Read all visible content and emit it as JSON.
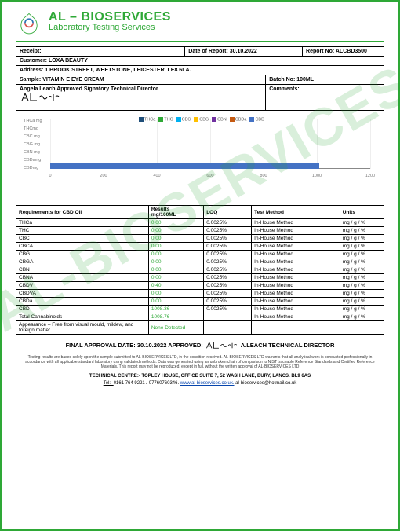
{
  "brand": {
    "name": "AL – BIOSERVICES",
    "sub": "Laboratory Testing Services"
  },
  "info": {
    "receipt_label": "Receipt:",
    "date_label": "Date of Report: ",
    "date": "30.10.2022",
    "report_label": "Report No: ",
    "report_no": "ALCBD3500",
    "customer_label": "Customer: ",
    "customer": "LOXA BEAUTY",
    "address_label": "Address:   ",
    "address": "1 BROOK STREET, WHETSTONE, LEICESTER. LE8 6LA.",
    "sample_label": "Sample: ",
    "sample": "VITAMIN E EYE CREAM",
    "batch_label": "Batch No: ",
    "batch": "100ML",
    "signatory_title": "Angela Leach Approved Signatory Technical Director",
    "comments_label": "Comments:"
  },
  "chart": {
    "type": "stacked-bar",
    "y_categories": [
      "THCa mg",
      "THCmg",
      "CBC mg",
      "CBG mg",
      "CBN mg",
      "CBDamg",
      "CBDmg"
    ],
    "xlim": [
      0,
      1200
    ],
    "xtick_step": 200,
    "xticks": [
      0,
      200,
      400,
      600,
      800,
      1000,
      1200
    ],
    "series_labels": [
      "THCa",
      "THC",
      "CBC",
      "CBG",
      "CBN",
      "CBDa",
      "CBD"
    ],
    "series_colors": [
      "#1f4e79",
      "#2ea836",
      "#00b0f0",
      "#ffc000",
      "#7030a0",
      "#c55a11",
      "#4472c4"
    ],
    "cbd_value": 1008.36,
    "grid_color": "#eeeeee",
    "axis_color": "#888888",
    "background": "#ffffff"
  },
  "table": {
    "headers": [
      "Requirements for CBD Oil",
      "Results mg/100ML",
      "LOQ",
      "Test Method",
      "Units"
    ],
    "rows": [
      [
        "THCa",
        "0.00",
        "0.0025%",
        "In-House Method",
        "mg / g / %"
      ],
      [
        "THC",
        "0.00",
        "0.0025%",
        "In-House Method",
        "mg / g / %"
      ],
      [
        "CBC",
        "0.00",
        "0.0025%",
        "In-House Method",
        "mg / g / %"
      ],
      [
        "CBCA",
        "0.00",
        "0.0025%",
        "In-House Method",
        "mg / g / %"
      ],
      [
        "CBG",
        "0.00",
        "0.0025%",
        "In-House Method",
        "mg / g / %"
      ],
      [
        "CBGA",
        "0.00",
        "0.0025%",
        "In-House Method",
        "mg / g / %"
      ],
      [
        "CBN",
        "0.00",
        "0.0025%",
        "In-House Method",
        "mg / g / %"
      ],
      [
        "CBNA",
        "0.00",
        "0.0025%",
        "In-House Method",
        "mg / g / %"
      ],
      [
        "CBDV",
        "0.40",
        "0.0025%",
        "In-House Method",
        "mg / g / %"
      ],
      [
        "CBDVA",
        "0.00",
        "0.0025%",
        "In-House Method",
        "mg / g / %"
      ],
      [
        "CBDa",
        "0.00",
        "0.0025%",
        "In-House Method",
        "mg / g / %"
      ],
      [
        "CBD",
        "1008.36",
        "0.0025%",
        "In-House Method",
        "mg / g / %"
      ],
      [
        "Total Cannabinoids",
        "1008.76",
        "",
        "In-House Method",
        "mg / g / %"
      ],
      [
        "Appearance – Free from visual mould, mildew, and foreign matter.",
        "None Detected",
        "",
        "",
        ""
      ]
    ]
  },
  "approval": {
    "label_left": "FINAL APPROVAL DATE: ",
    "date": "30.10.2022",
    "label_mid": "    APPROVED:  ",
    "name": "  A.LEACH TECHNICAL DIRECTOR"
  },
  "fineprint": "Testing results are based solely upon the sample submitted to AL-BIOSERVICES LTD, in the condition received. AL-BIOSERVICES LTD warrants that all analytical work is conducted professionally in accordance with all applicable standard laboratory using validated methods. Data was generated using an unbroken chain of comparison to NIST traceable Reference Standards and Certified Reference Materials. This report may not be reproduced, except in full, without the written approval of AL-BIOSERVICES LTD",
  "tech_centre": "TECHNICAL CENTRE:- TOPLEY HOUSE, OFFICE SUITE 7, 52 WASH LANE, BURY, LANCS. BL9 6AS",
  "contact": {
    "tel_label": "Tel:- ",
    "tel": "0161 764 9221 / 07760760346.",
    "site": "www.al-bioservices.co.uk.",
    "email": "  al-bioservices@hotmail.co.uk"
  },
  "watermark_text": "AL-BIOSERVICES"
}
